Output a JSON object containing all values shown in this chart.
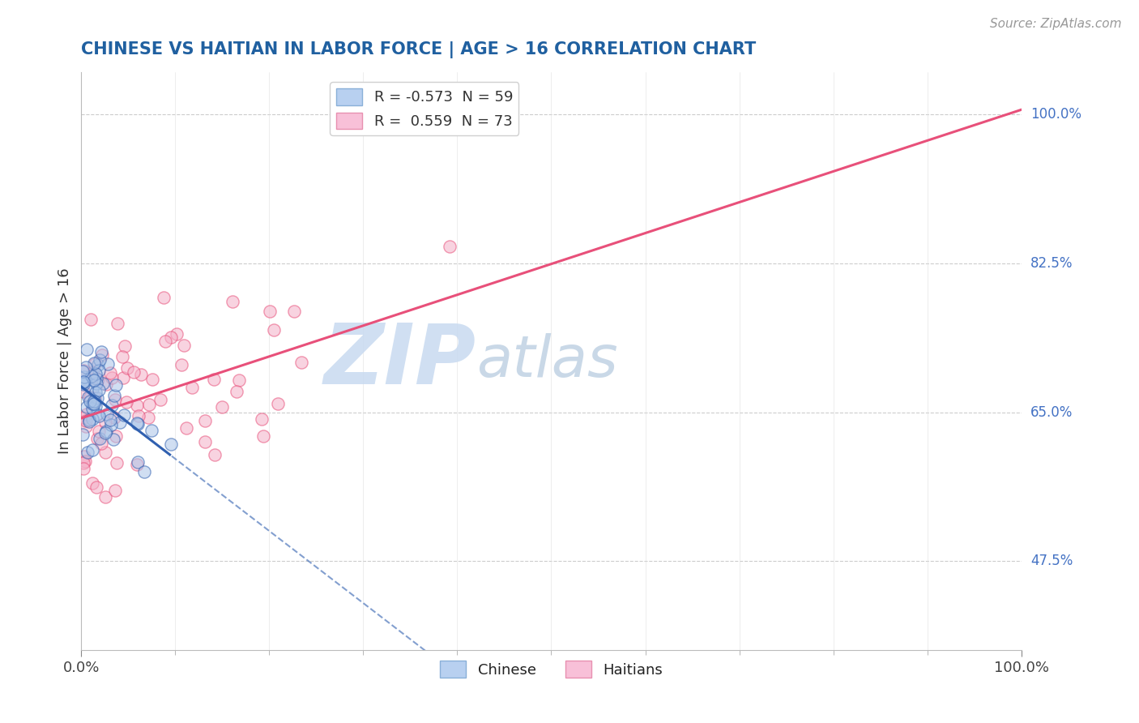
{
  "title": "CHINESE VS HAITIAN IN LABOR FORCE | AGE > 16 CORRELATION CHART",
  "source_text": "Source: ZipAtlas.com",
  "ylabel_label": "In Labor Force | Age > 16",
  "right_yticks": [
    "100.0%",
    "82.5%",
    "65.0%",
    "47.5%"
  ],
  "right_ytick_vals": [
    1.0,
    0.825,
    0.65,
    0.475
  ],
  "chinese_R": -0.573,
  "chinese_N": 59,
  "haitian_R": 0.559,
  "haitian_N": 73,
  "xlim": [
    0.0,
    1.0
  ],
  "ylim": [
    0.37,
    1.05
  ],
  "scatter_alpha": 0.55,
  "scatter_size": 120,
  "chinese_color": "#aac4e8",
  "haitian_color": "#f4afc8",
  "chinese_line_color": "#3060b0",
  "haitian_line_color": "#e8507a",
  "background_color": "#ffffff",
  "grid_color": "#cccccc",
  "title_color": "#2060a0",
  "watermark_color_zip": "#c0d4ec",
  "watermark_color_atlas": "#b8c8e0",
  "legend_label_chinese": "R = -0.573  N = 59",
  "legend_label_haitian": "R =  0.559  N = 73"
}
